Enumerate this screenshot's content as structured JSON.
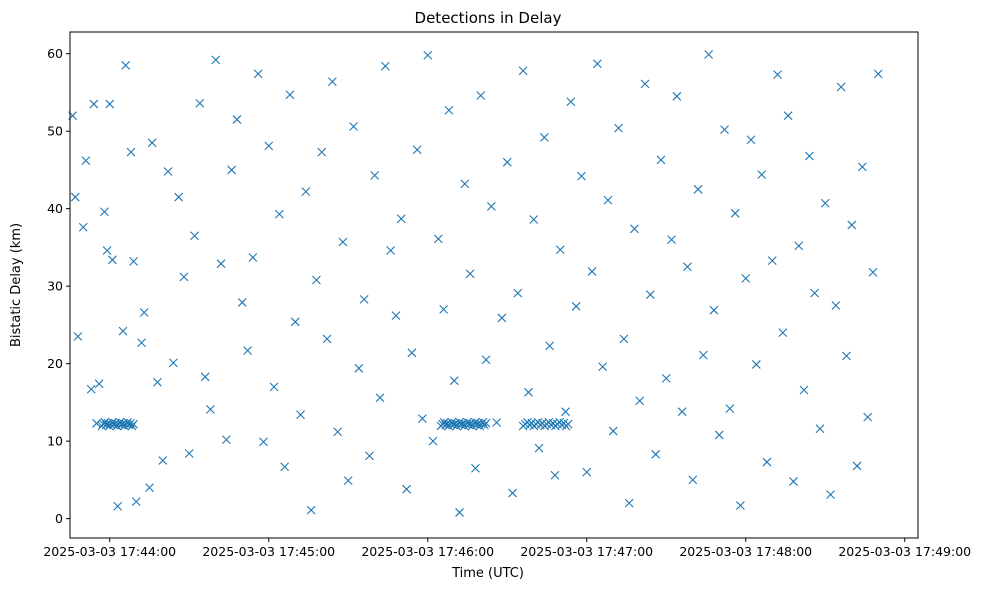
{
  "chart_data": {
    "type": "scatter",
    "title": "Detections in Delay",
    "xlabel": "Time (UTC)",
    "ylabel": "Bistatic Delay (km)",
    "x_ticks": [
      "2025-03-03 17:44:00",
      "2025-03-03 17:45:00",
      "2025-03-03 17:46:00",
      "2025-03-03 17:47:00",
      "2025-03-03 17:48:00",
      "2025-03-03 17:49:00"
    ],
    "y_ticks": [
      0,
      10,
      20,
      30,
      40,
      50,
      60
    ],
    "xlim": [
      "2025-03-03 17:43:45",
      "2025-03-03 17:49:05"
    ],
    "ylim": [
      -2.5,
      62.8
    ],
    "grid": false,
    "legend": "none",
    "marker": "x",
    "color": "#1f77b4",
    "x_sample_note_removed": true,
    "series": [
      {
        "x": [
          "2025-03-03 17:43:46",
          "2025-03-03 17:43:47",
          "2025-03-03 17:43:48",
          "2025-03-03 17:43:50",
          "2025-03-03 17:43:51",
          "2025-03-03 17:43:53",
          "2025-03-03 17:43:54",
          "2025-03-03 17:43:55",
          "2025-03-03 17:43:56",
          "2025-03-03 17:43:58",
          "2025-03-03 17:43:59",
          "2025-03-03 17:44:00",
          "2025-03-03 17:44:01",
          "2025-03-03 17:44:03",
          "2025-03-03 17:44:05",
          "2025-03-03 17:44:06",
          "2025-03-03 17:44:08",
          "2025-03-03 17:44:09",
          "2025-03-03 17:44:10",
          "2025-03-03 17:44:12",
          "2025-03-03 17:44:13",
          "2025-03-03 17:44:15",
          "2025-03-03 17:44:16",
          "2025-03-03 17:44:18",
          "2025-03-03 17:44:20",
          "2025-03-03 17:44:22",
          "2025-03-03 17:44:24",
          "2025-03-03 17:44:26",
          "2025-03-03 17:44:28",
          "2025-03-03 17:44:30",
          "2025-03-03 17:44:32",
          "2025-03-03 17:44:34",
          "2025-03-03 17:44:36",
          "2025-03-03 17:44:38",
          "2025-03-03 17:44:40",
          "2025-03-03 17:44:42",
          "2025-03-03 17:44:44",
          "2025-03-03 17:44:46",
          "2025-03-03 17:44:48",
          "2025-03-03 17:44:50",
          "2025-03-03 17:44:52",
          "2025-03-03 17:44:54",
          "2025-03-03 17:44:56",
          "2025-03-03 17:44:58",
          "2025-03-03 17:45:00",
          "2025-03-03 17:45:02",
          "2025-03-03 17:45:04",
          "2025-03-03 17:45:06",
          "2025-03-03 17:45:08",
          "2025-03-03 17:45:10",
          "2025-03-03 17:45:12",
          "2025-03-03 17:45:14",
          "2025-03-03 17:45:16",
          "2025-03-03 17:45:18",
          "2025-03-03 17:45:20",
          "2025-03-03 17:45:22",
          "2025-03-03 17:45:24",
          "2025-03-03 17:45:26",
          "2025-03-03 17:45:28",
          "2025-03-03 17:45:30",
          "2025-03-03 17:45:32",
          "2025-03-03 17:45:34",
          "2025-03-03 17:45:36",
          "2025-03-03 17:45:38",
          "2025-03-03 17:45:40",
          "2025-03-03 17:45:42",
          "2025-03-03 17:45:44",
          "2025-03-03 17:45:46",
          "2025-03-03 17:45:48",
          "2025-03-03 17:45:50",
          "2025-03-03 17:45:52",
          "2025-03-03 17:45:54",
          "2025-03-03 17:45:56",
          "2025-03-03 17:45:58",
          "2025-03-03 17:46:00",
          "2025-03-03 17:46:02",
          "2025-03-03 17:46:04",
          "2025-03-03 17:46:06",
          "2025-03-03 17:46:08",
          "2025-03-03 17:46:10",
          "2025-03-03 17:46:12",
          "2025-03-03 17:46:14",
          "2025-03-03 17:46:16",
          "2025-03-03 17:46:18",
          "2025-03-03 17:46:20",
          "2025-03-03 17:46:22",
          "2025-03-03 17:46:24",
          "2025-03-03 17:46:26",
          "2025-03-03 17:46:28",
          "2025-03-03 17:46:30",
          "2025-03-03 17:46:32",
          "2025-03-03 17:46:34",
          "2025-03-03 17:46:36",
          "2025-03-03 17:46:38",
          "2025-03-03 17:46:40",
          "2025-03-03 17:46:42",
          "2025-03-03 17:46:44",
          "2025-03-03 17:46:46",
          "2025-03-03 17:46:48",
          "2025-03-03 17:46:50",
          "2025-03-03 17:46:52",
          "2025-03-03 17:46:54",
          "2025-03-03 17:46:56",
          "2025-03-03 17:46:58",
          "2025-03-03 17:47:00",
          "2025-03-03 17:47:02",
          "2025-03-03 17:47:04",
          "2025-03-03 17:47:06",
          "2025-03-03 17:47:08",
          "2025-03-03 17:47:10",
          "2025-03-03 17:47:12",
          "2025-03-03 17:47:14",
          "2025-03-03 17:47:16",
          "2025-03-03 17:47:18",
          "2025-03-03 17:47:20",
          "2025-03-03 17:47:22",
          "2025-03-03 17:47:24",
          "2025-03-03 17:47:26",
          "2025-03-03 17:47:28",
          "2025-03-03 17:47:30",
          "2025-03-03 17:47:32",
          "2025-03-03 17:47:34",
          "2025-03-03 17:47:36",
          "2025-03-03 17:47:38",
          "2025-03-03 17:47:40",
          "2025-03-03 17:47:42",
          "2025-03-03 17:47:44",
          "2025-03-03 17:47:46",
          "2025-03-03 17:47:48",
          "2025-03-03 17:47:50",
          "2025-03-03 17:47:52",
          "2025-03-03 17:47:54",
          "2025-03-03 17:47:56",
          "2025-03-03 17:47:58",
          "2025-03-03 17:48:00",
          "2025-03-03 17:48:02",
          "2025-03-03 17:48:04",
          "2025-03-03 17:48:06",
          "2025-03-03 17:48:08",
          "2025-03-03 17:48:10",
          "2025-03-03 17:48:12",
          "2025-03-03 17:48:14",
          "2025-03-03 17:48:16",
          "2025-03-03 17:48:18",
          "2025-03-03 17:48:20",
          "2025-03-03 17:48:22",
          "2025-03-03 17:48:24",
          "2025-03-03 17:48:26",
          "2025-03-03 17:48:28",
          "2025-03-03 17:48:30",
          "2025-03-03 17:48:32",
          "2025-03-03 17:48:34",
          "2025-03-03 17:48:36",
          "2025-03-03 17:48:38",
          "2025-03-03 17:48:40",
          "2025-03-03 17:48:42",
          "2025-03-03 17:48:44",
          "2025-03-03 17:48:46",
          "2025-03-03 17:48:48",
          "2025-03-03 17:48:50"
        ],
        "y": [
          52.0,
          41.5,
          23.5,
          37.6,
          46.2,
          16.7,
          53.5,
          12.3,
          17.4,
          39.6,
          34.6,
          53.5,
          33.4,
          1.6,
          24.2,
          58.5,
          47.3,
          33.2,
          2.2,
          22.7,
          26.6,
          4.0,
          48.5,
          17.6,
          7.5,
          44.8,
          20.1,
          41.5,
          31.2,
          8.4,
          36.5,
          53.6,
          18.3,
          14.1,
          59.2,
          32.9,
          10.2,
          45.0,
          51.5,
          27.9,
          21.7,
          33.7,
          57.4,
          9.9,
          48.1,
          17.0,
          39.3,
          6.7,
          54.7,
          25.4,
          13.4,
          42.2,
          1.1,
          30.8,
          47.3,
          23.2,
          56.4,
          11.2,
          35.7,
          4.9,
          50.6,
          19.4,
          28.3,
          8.1,
          44.3,
          15.6,
          58.4,
          34.6,
          26.2,
          38.7,
          3.8,
          21.4,
          47.6,
          12.9,
          59.8,
          10.0,
          36.1,
          27.0,
          52.7,
          17.8,
          0.8,
          43.2,
          31.6,
          6.5,
          54.6,
          20.5,
          40.3,
          12.4,
          25.9,
          46.0,
          3.3,
          29.1,
          57.8,
          16.3,
          38.6,
          9.1,
          49.2,
          22.3,
          5.6,
          34.7,
          13.8,
          53.8,
          27.4,
          44.2,
          6.0,
          31.9,
          58.7,
          19.6,
          41.1,
          11.3,
          50.4,
          23.2,
          2.0,
          37.4,
          15.2,
          56.1,
          28.9,
          8.3,
          46.3,
          18.1,
          36.0,
          54.5,
          13.8,
          32.5,
          5.0,
          42.5,
          21.1,
          59.9,
          26.9,
          10.8,
          50.2,
          14.2,
          39.4,
          1.7,
          31.0,
          48.9,
          19.9,
          44.4,
          7.3,
          33.3,
          57.3,
          24.0,
          52.0,
          4.8,
          35.2,
          16.6,
          46.8,
          29.1,
          11.6,
          40.7,
          3.1,
          27.5,
          55.7,
          21.0,
          37.9,
          6.8,
          45.4,
          13.1,
          31.8,
          57.4
        ]
      }
    ],
    "dense_cluster": {
      "y": 12.2,
      "x_ranges": [
        [
          "2025-03-03 17:43:57",
          "2025-03-03 17:44:09"
        ],
        [
          "2025-03-03 17:46:05",
          "2025-03-03 17:46:22"
        ],
        [
          "2025-03-03 17:46:36",
          "2025-03-03 17:46:53"
        ]
      ],
      "counts": [
        22,
        30,
        22
      ]
    }
  }
}
